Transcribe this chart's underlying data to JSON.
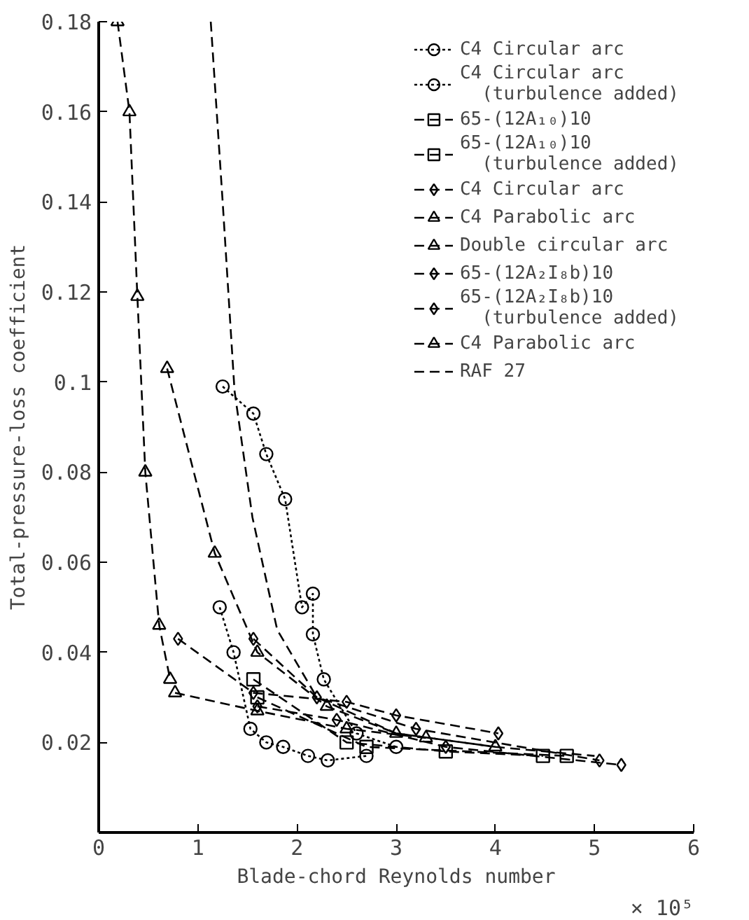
{
  "chart_data": {
    "type": "line",
    "xlabel": "Blade-chord Reynolds number",
    "ylabel": "Total-pressure-loss coefficient",
    "xlim": [
      0,
      6
    ],
    "ylim": [
      0,
      0.18
    ],
    "xticks": [
      0,
      1,
      2,
      3,
      4,
      5,
      6
    ],
    "annotations": [
      "× 10⁵"
    ],
    "yticks": [
      0.02,
      0.04,
      0.06,
      0.08,
      0.1,
      0.12,
      0.14,
      0.16,
      0.18
    ],
    "grid": false,
    "legend": "top right",
    "series": [
      {
        "name": "C4 Circular arc",
        "color": "#000000",
        "marker": "circle",
        "line_style": "dotted",
        "x": [
          1.25,
          1.56,
          1.69,
          1.88,
          2.05,
          2.16,
          2.16,
          2.27,
          2.6,
          3.0
        ],
        "values": [
          0.099,
          0.093,
          0.084,
          0.074,
          0.05,
          0.053,
          0.044,
          0.034,
          0.022,
          0.019
        ]
      },
      {
        "name": "C4 Circular arc (turbulence added)",
        "color": "#000000",
        "marker": "circle",
        "line_style": "dotted",
        "x": [
          1.22,
          1.36,
          1.53,
          1.69,
          1.86,
          2.11,
          2.31,
          2.7
        ],
        "values": [
          0.05,
          0.04,
          0.023,
          0.02,
          0.019,
          0.017,
          0.016,
          0.017
        ]
      },
      {
        "name": "65-(12A₁₀)10",
        "color": "#000000",
        "marker": "square",
        "line_style": "dashed",
        "x": [
          1.56,
          2.5,
          3.5,
          4.48
        ],
        "values": [
          0.034,
          0.02,
          0.018,
          0.017
        ]
      },
      {
        "name": "65-(12A₁₀)10 (turbulence added)",
        "color": "#000000",
        "marker": "square",
        "line_style": "dashed",
        "x": [
          1.6,
          2.7,
          4.72
        ],
        "values": [
          0.03,
          0.019,
          0.017
        ]
      },
      {
        "name": "C4 Circular arc",
        "color": "#000000",
        "marker": "diamond",
        "line_style": "dashed",
        "x": [
          0.8,
          1.56,
          2.5,
          3.0,
          4.03
        ],
        "values": [
          0.043,
          0.031,
          0.029,
          0.026,
          0.022
        ]
      },
      {
        "name": "C4 Parabolic arc",
        "color": "#000000",
        "marker": "triangle",
        "line_style": "dashed",
        "x": [
          0.77,
          1.6,
          2.5,
          3.3
        ],
        "values": [
          0.031,
          0.027,
          0.023,
          0.021
        ]
      },
      {
        "name": "Double circular arc",
        "color": "#000000",
        "marker": "triangle",
        "line_style": "dashed",
        "x": [
          0.69,
          1.17,
          1.6,
          2.3,
          3.0,
          4.0
        ],
        "values": [
          0.103,
          0.062,
          0.04,
          0.028,
          0.022,
          0.019
        ]
      },
      {
        "name": "65-(12A₂I₈b)10",
        "color": "#000000",
        "marker": "diamond",
        "line_style": "dashed",
        "x": [
          1.6,
          2.4,
          3.5,
          5.27
        ],
        "values": [
          0.028,
          0.025,
          0.019,
          0.015
        ]
      },
      {
        "name": "65-(12A₂I₈b)10 (turbulence added)",
        "color": "#000000",
        "marker": "diamond",
        "line_style": "dashed",
        "x": [
          1.56,
          2.2,
          3.2,
          5.05
        ],
        "values": [
          0.043,
          0.03,
          0.023,
          0.016
        ]
      },
      {
        "name": "C4 Parabolic arc",
        "color": "#000000",
        "marker": "triangle",
        "line_style": "dashed",
        "x": [
          0.19,
          0.31,
          0.39,
          0.47,
          0.61,
          0.72
        ],
        "values": [
          0.18,
          0.16,
          0.119,
          0.08,
          0.046,
          0.034
        ]
      },
      {
        "name": "RAF 27",
        "color": "#000000",
        "marker": "none",
        "line_style": "dashed",
        "x": [
          1.13,
          1.25,
          1.37,
          1.55,
          1.8,
          2.2,
          3.0,
          4.0,
          5.0
        ],
        "values": [
          0.18,
          0.14,
          0.098,
          0.07,
          0.045,
          0.03,
          0.022,
          0.019,
          0.017
        ]
      }
    ]
  }
}
